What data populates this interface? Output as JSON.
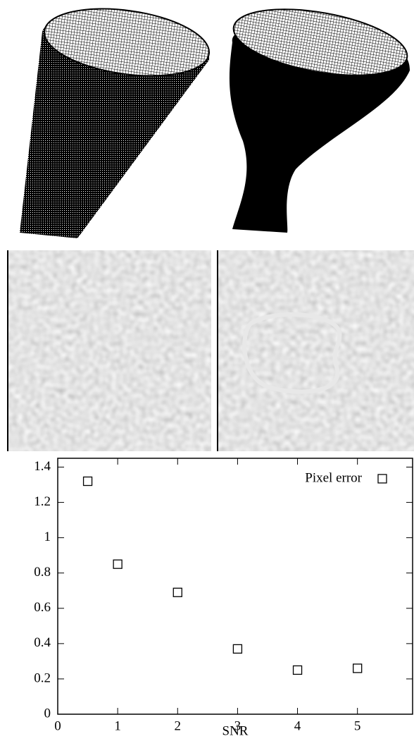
{
  "chart_data": {
    "type": "scatter",
    "x": [
      0.5,
      1,
      2,
      3,
      4,
      5
    ],
    "series": [
      {
        "name": "Pixel error",
        "color": "#000000",
        "values": [
          1.32,
          0.85,
          0.69,
          0.37,
          0.25,
          0.26
        ]
      }
    ],
    "xlabel": "SNR",
    "xlim": [
      0,
      5.92
    ],
    "xticks": [
      0,
      1,
      2,
      3,
      4,
      5
    ],
    "ylim": [
      0,
      1.45
    ],
    "yticks": [
      0,
      0.2,
      0.4,
      0.6,
      0.8,
      1,
      1.2,
      1.4
    ],
    "legend": "top-right",
    "grid": false
  }
}
